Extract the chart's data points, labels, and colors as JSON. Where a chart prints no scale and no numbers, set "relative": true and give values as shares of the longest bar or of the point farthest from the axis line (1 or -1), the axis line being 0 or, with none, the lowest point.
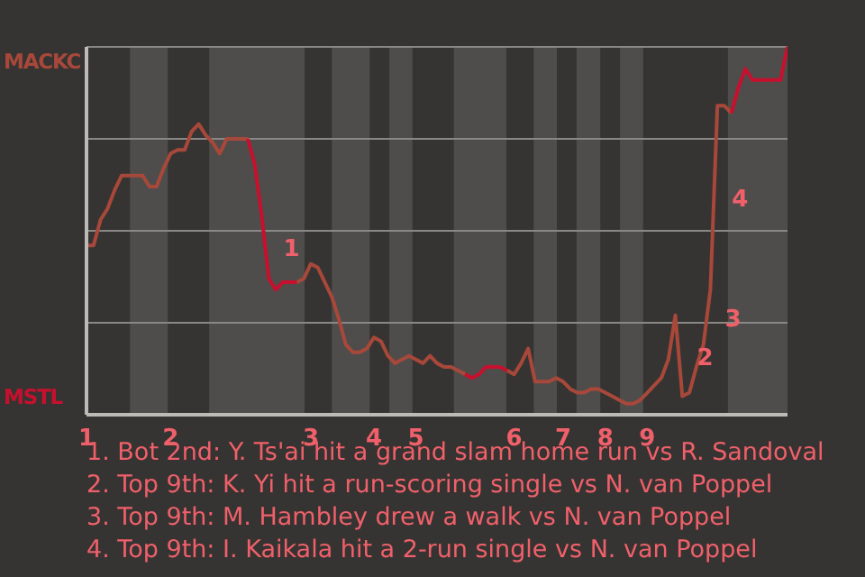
{
  "chart_data": {
    "type": "line",
    "relative": true,
    "categories": [
      "1",
      null,
      null,
      null,
      null,
      null,
      null,
      null,
      null,
      null,
      null,
      null,
      "2",
      null,
      null,
      null,
      null,
      null,
      null,
      null,
      null,
      null,
      null,
      null,
      null,
      null,
      null,
      null,
      null,
      null,
      null,
      null,
      "3",
      null,
      null,
      null,
      null,
      null,
      null,
      null,
      null,
      "4",
      null,
      null,
      null,
      null,
      null,
      "5",
      null,
      null,
      null,
      null,
      null,
      null,
      null,
      null,
      null,
      null,
      null,
      null,
      null,
      "6",
      null,
      null,
      null,
      null,
      null,
      null,
      "7",
      null,
      null,
      null,
      null,
      null,
      "8",
      null,
      null,
      null,
      null,
      null,
      "9",
      null,
      null,
      null,
      null,
      null,
      null,
      null,
      null,
      null,
      null,
      null,
      null,
      null,
      null,
      null,
      null,
      null,
      null,
      null,
      null
    ],
    "series": [
      {
        "name": "MACKC",
        "color": "#a8483a",
        "values": [
          0.46,
          0.46,
          0.53,
          0.56,
          0.61,
          0.65,
          0.65,
          0.65,
          0.65,
          0.62,
          0.62,
          0.67,
          0.71,
          0.72,
          0.72,
          0.77,
          0.79,
          0.76,
          0.74,
          0.71,
          0.75,
          0.75,
          0.75,
          0.75,
          null,
          null,
          null,
          null,
          null,
          null,
          0.36,
          0.37,
          0.41,
          0.4,
          0.36,
          0.32,
          0.26,
          0.19,
          0.17,
          0.17,
          0.18,
          0.21,
          0.2,
          0.16,
          0.14,
          0.15,
          0.16,
          0.15,
          0.14,
          0.16,
          0.14,
          0.13,
          0.13,
          0.12,
          0.11,
          null,
          null,
          null,
          null,
          null,
          0.12,
          0.11,
          0.14,
          0.18,
          0.09,
          0.09,
          0.09,
          0.1,
          0.09,
          0.07,
          0.06,
          0.06,
          0.07,
          0.07,
          0.06,
          0.05,
          0.04,
          0.03,
          0.03,
          0.04,
          0.06,
          0.08,
          0.1,
          0.15,
          0.27,
          0.05,
          0.06,
          0.13,
          0.19,
          0.34,
          0.84,
          0.84,
          0.82,
          null,
          null,
          null,
          null,
          null,
          null,
          null,
          null
        ]
      },
      {
        "name": "MSTL",
        "color": "#c8102e",
        "values": [
          null,
          null,
          null,
          null,
          null,
          null,
          null,
          null,
          null,
          null,
          null,
          null,
          null,
          null,
          null,
          null,
          null,
          null,
          null,
          null,
          null,
          null,
          null,
          0.75,
          0.68,
          0.54,
          0.37,
          0.34,
          0.36,
          0.36,
          0.36,
          null,
          null,
          null,
          null,
          null,
          null,
          null,
          null,
          null,
          null,
          null,
          null,
          null,
          null,
          null,
          null,
          null,
          null,
          null,
          null,
          null,
          null,
          null,
          0.11,
          0.1,
          0.11,
          0.13,
          0.13,
          0.13,
          0.12,
          null,
          null,
          null,
          null,
          null,
          null,
          null,
          null,
          null,
          null,
          null,
          null,
          null,
          null,
          null,
          null,
          null,
          null,
          null,
          null,
          null,
          null,
          null,
          null,
          null,
          null,
          null,
          null,
          null,
          null,
          null,
          0.82,
          0.89,
          0.94,
          0.91,
          0.91,
          0.91,
          0.91,
          0.91,
          1.0
        ]
      }
    ],
    "grid": "y",
    "legend": false,
    "marker": "none",
    "annotations": [
      "1",
      "2",
      "3",
      "4",
      "1. Bot 2nd: Y. Ts'ai hit a grand slam home run vs R. Sandoval",
      "2. Top 9th: K. Yi hit a run-scoring single vs N. van Poppel",
      "3. Top 9th: M. Hambley drew a walk vs N. van Poppel",
      "4. Top 9th: I. Kaikala hit a 2-run single vs N. van Poppel"
    ]
  }
}
